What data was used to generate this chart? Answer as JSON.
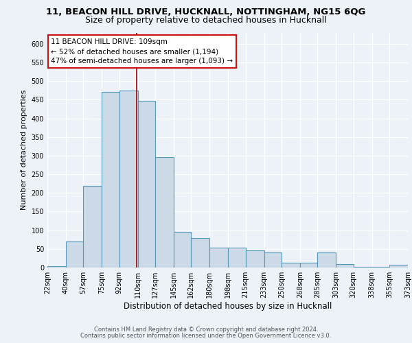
{
  "title1": "11, BEACON HILL DRIVE, HUCKNALL, NOTTINGHAM, NG15 6QG",
  "title2": "Size of property relative to detached houses in Hucknall",
  "xlabel": "Distribution of detached houses by size in Hucknall",
  "ylabel": "Number of detached properties",
  "bar_edges": [
    22,
    40,
    57,
    75,
    92,
    110,
    127,
    145,
    162,
    180,
    198,
    215,
    233,
    250,
    268,
    285,
    303,
    320,
    338,
    355,
    373
  ],
  "bar_heights": [
    4,
    70,
    218,
    470,
    475,
    447,
    297,
    96,
    80,
    54,
    54,
    46,
    40,
    12,
    12,
    40,
    10,
    2,
    2,
    8
  ],
  "bar_labels": [
    "22sqm",
    "40sqm",
    "57sqm",
    "75sqm",
    "92sqm",
    "110sqm",
    "127sqm",
    "145sqm",
    "162sqm",
    "180sqm",
    "198sqm",
    "215sqm",
    "233sqm",
    "250sqm",
    "268sqm",
    "285sqm",
    "303sqm",
    "320sqm",
    "338sqm",
    "355sqm",
    "373sqm"
  ],
  "bar_color": "#ccdae8",
  "bar_edge_color": "#5599bb",
  "vline_x": 109,
  "vline_color": "#aa1111",
  "annotation_text": "11 BEACON HILL DRIVE: 109sqm\n← 52% of detached houses are smaller (1,194)\n47% of semi-detached houses are larger (1,093) →",
  "annotation_box_color": "#ffffff",
  "annotation_box_edge": "#cc1111",
  "ylim": [
    0,
    630
  ],
  "yticks": [
    0,
    50,
    100,
    150,
    200,
    250,
    300,
    350,
    400,
    450,
    500,
    550,
    600
  ],
  "bg_color": "#edf2f8",
  "grid_color": "#ffffff",
  "footer1": "Contains HM Land Registry data © Crown copyright and database right 2024.",
  "footer2": "Contains public sector information licensed under the Open Government Licence v3.0.",
  "title1_fontsize": 9.5,
  "title2_fontsize": 9,
  "xlabel_fontsize": 8.5,
  "ylabel_fontsize": 8,
  "tick_fontsize": 7,
  "annotation_fontsize": 7.5,
  "footer_fontsize": 6
}
